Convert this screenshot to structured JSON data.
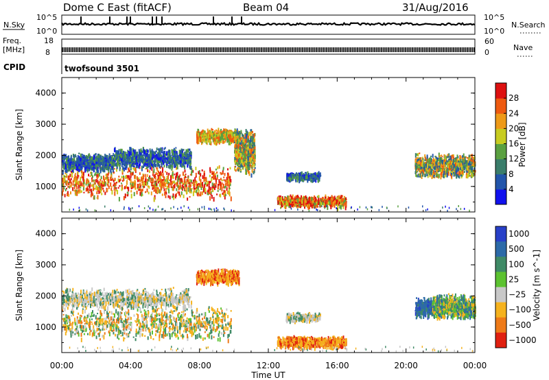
{
  "header": {
    "station": "Dome C East (fitACF)",
    "beam": "Beam 04",
    "date": "31/Aug/2016"
  },
  "top_panels": {
    "nsky_label": "N.Sky",
    "nsky_ticks": [
      "10^5",
      "10^0"
    ],
    "nsearch_label": "N.Search",
    "nsearch_ticks": [
      "10^5",
      "10^0"
    ],
    "freq_label": "Freq.",
    "freq_unit": "[MHz]",
    "freq_ticks": [
      "18",
      "8"
    ],
    "nave_label": "Nave",
    "nave_ticks": [
      "60",
      "0"
    ],
    "cpid_label": "CPID",
    "cpid_value": "twofsound 3501"
  },
  "chart_data": [
    {
      "type": "heatmap",
      "name": "power",
      "ylabel": "Slant Range [km]",
      "ylim": [
        180,
        4500
      ],
      "yticks": [
        1000,
        2000,
        3000,
        4000
      ],
      "xlim": [
        0,
        24
      ],
      "colorbar": {
        "label": "Power [dB]",
        "range": [
          0,
          32
        ],
        "ticks": [
          "4",
          "8",
          "12",
          "16",
          "20",
          "24",
          "28"
        ],
        "tick_values": [
          4,
          8,
          12,
          16,
          20,
          24,
          28
        ],
        "colors": [
          "#1111ee",
          "#2255aa",
          "#3a7d6a",
          "#5aa040",
          "#c8cc20",
          "#ee9a18",
          "#ee5a10",
          "#dd1010"
        ]
      },
      "echo_regions": [
        {
          "t": [
            0.0,
            9.8
          ],
          "r": [
            600,
            1700
          ],
          "level": "high"
        },
        {
          "t": [
            0.0,
            3.0
          ],
          "r": [
            1500,
            2100
          ],
          "level": "low"
        },
        {
          "t": [
            3.0,
            7.5
          ],
          "r": [
            1600,
            2300
          ],
          "level": "low"
        },
        {
          "t": [
            7.8,
            10.3
          ],
          "r": [
            2400,
            2900
          ],
          "level": "mid"
        },
        {
          "t": [
            10.0,
            11.2
          ],
          "r": [
            1400,
            2900
          ],
          "level": "mixed"
        },
        {
          "t": [
            13.0,
            15.0
          ],
          "r": [
            1200,
            1500
          ],
          "level": "low"
        },
        {
          "t": [
            12.5,
            16.5
          ],
          "r": [
            350,
            750
          ],
          "level": "high"
        },
        {
          "t": [
            20.5,
            24.0
          ],
          "r": [
            1300,
            2100
          ],
          "level": "mixed"
        }
      ]
    },
    {
      "type": "heatmap",
      "name": "velocity",
      "ylabel": "Slant Range [km]",
      "xlabel": "Time UT",
      "ylim": [
        180,
        4500
      ],
      "yticks": [
        1000,
        2000,
        3000,
        4000
      ],
      "xlim": [
        0,
        24
      ],
      "xticks": [
        "00:00",
        "04:00",
        "08:00",
        "12:00",
        "16:00",
        "20:00",
        "00:00"
      ],
      "colorbar": {
        "label": "Velocity [m s^-1]",
        "ticks": [
          "1000",
          "500",
          "100",
          "25",
          "−25",
          "−100",
          "−500",
          "−1000"
        ],
        "colors": [
          "#2840c8",
          "#2c6aa8",
          "#3f8a66",
          "#5cc230",
          "#c8c8c8",
          "#f5b21e",
          "#ee7a18",
          "#e02010"
        ]
      },
      "echo_regions": [
        {
          "t": [
            0.0,
            9.8
          ],
          "r": [
            600,
            1700
          ],
          "value": "mixed"
        },
        {
          "t": [
            0.0,
            7.5
          ],
          "r": [
            1600,
            2300
          ],
          "value": "25 to -25"
        },
        {
          "t": [
            7.8,
            10.3
          ],
          "r": [
            2400,
            2900
          ],
          "value": "-100 to -500"
        },
        {
          "t": [
            13.0,
            15.0
          ],
          "r": [
            1200,
            1500
          ],
          "value": "25 to -25"
        },
        {
          "t": [
            12.5,
            16.5
          ],
          "r": [
            350,
            750
          ],
          "value": "-100 to -500"
        },
        {
          "t": [
            20.5,
            21.5
          ],
          "r": [
            1300,
            2000
          ],
          "value": "500 to 1000"
        },
        {
          "t": [
            21.5,
            24.0
          ],
          "r": [
            1300,
            2100
          ],
          "value": "25 to 500"
        }
      ]
    }
  ]
}
